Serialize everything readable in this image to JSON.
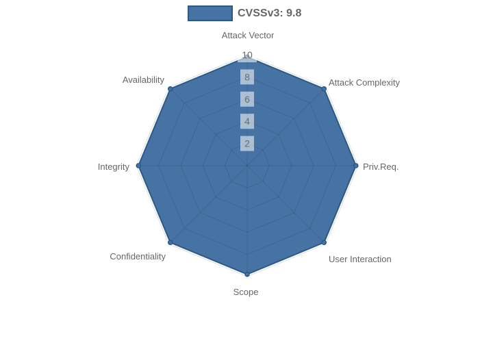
{
  "chart_data": {
    "type": "radar",
    "categories": [
      "Attack Vector",
      "Attack Complexity",
      "Priv.Req.",
      "User Interaction",
      "Scope",
      "Confidentiality",
      "Integrity",
      "Availability"
    ],
    "series": [
      {
        "name": "CVSSv3: 9.8",
        "values": [
          9.8,
          9.8,
          9.8,
          9.8,
          9.8,
          9.8,
          9.8,
          9.8
        ]
      }
    ],
    "scale": {
      "min": 0,
      "max": 10,
      "ticks": [
        2,
        4,
        6,
        8,
        10
      ]
    },
    "legend_position": "top",
    "grid": true,
    "colors": {
      "series_fill": "rgba(56,104,156,0.93)",
      "series_border": "#2b5987",
      "point_fill": "#4a79ab",
      "grid_line": "rgba(10,30,60,0.14)",
      "tick_backdrop": "rgba(255,255,255,0.55)",
      "tick_text": "#6b6b6b",
      "label_text": "#666666"
    }
  }
}
